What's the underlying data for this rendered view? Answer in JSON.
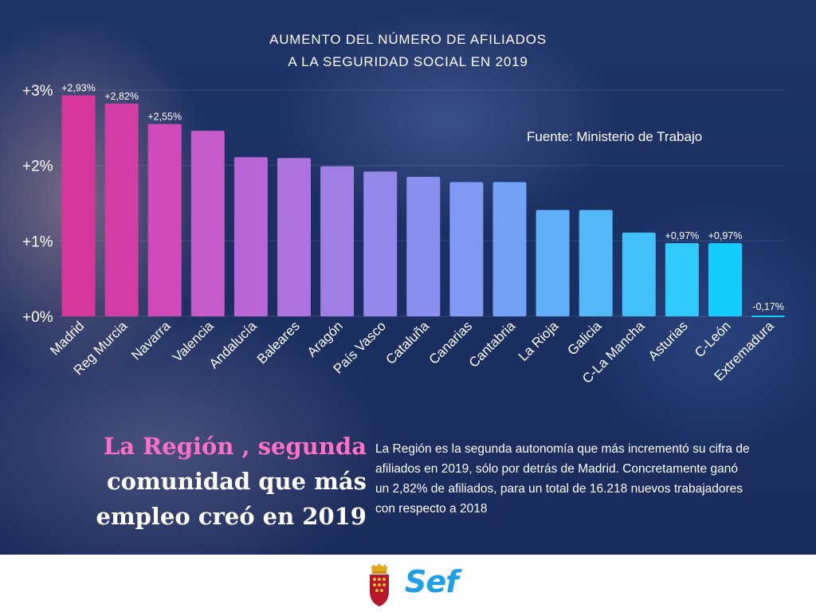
{
  "title_lines": [
    "AUMENTO DEL NÚMERO DE AFILIADOS",
    "A LA SEGURIDAD SOCIAL EN 2019"
  ],
  "source": "Fuente: Ministerio de Trabajo",
  "chart_data": {
    "type": "bar",
    "title": "AUMENTO DEL NÚMERO DE AFILIADOS A LA SEGURIDAD SOCIAL EN 2019",
    "categories": [
      "Madrid",
      "Reg Murcia",
      "Navarra",
      "Valencia",
      "Andalucía",
      "Baleares",
      "Aragón",
      "País Vasco",
      "Cataluña",
      "Canarias",
      "Cantabria",
      "La Rioja",
      "Galicia",
      "C-La Mancha",
      "Asturias",
      "C-León",
      "Extremadura"
    ],
    "values": [
      2.93,
      2.82,
      2.55,
      2.46,
      2.11,
      2.1,
      1.99,
      1.92,
      1.85,
      1.78,
      1.78,
      1.41,
      1.41,
      1.11,
      0.97,
      0.97,
      -0.17
    ],
    "data_labels": [
      "+2,93%",
      "+2,82%",
      "+2,55%",
      "",
      "",
      "",
      "",
      "",
      "",
      "",
      "",
      "",
      "",
      "",
      "+0,97%",
      "+0,97%",
      "-0,17%"
    ],
    "yticks": [
      "+0%",
      "+1%",
      "+2%",
      "+3%"
    ],
    "ytick_values": [
      0,
      1,
      2,
      3
    ],
    "ylim": [
      0,
      3
    ],
    "grid": true,
    "colors": [
      "#d6379a",
      "#d33ea6",
      "#cf4bbb",
      "#c45bc9",
      "#b866d5",
      "#ad72dd",
      "#9f7fe3",
      "#9488ea",
      "#8a90f0",
      "#7f99f4",
      "#74a2f6",
      "#5fb0f8",
      "#52b8f8",
      "#43c0fa",
      "#30c9fb",
      "#14cdff",
      "#14cdff"
    ]
  },
  "headline": {
    "pink": "La Región , segunda",
    "rest_line1": "comunidad que más",
    "rest_line2": "empleo creó en 2019"
  },
  "body": "La Región es la segunda autonomía que más incrementó su cifra de afiliados en 2019, sólo por detrás de Madrid. Concretamente ganó un 2,82% de afiliados, para un total de 16.218 nuevos trabajadores con respecto a 2018",
  "logo": {
    "brand": "Sef"
  }
}
